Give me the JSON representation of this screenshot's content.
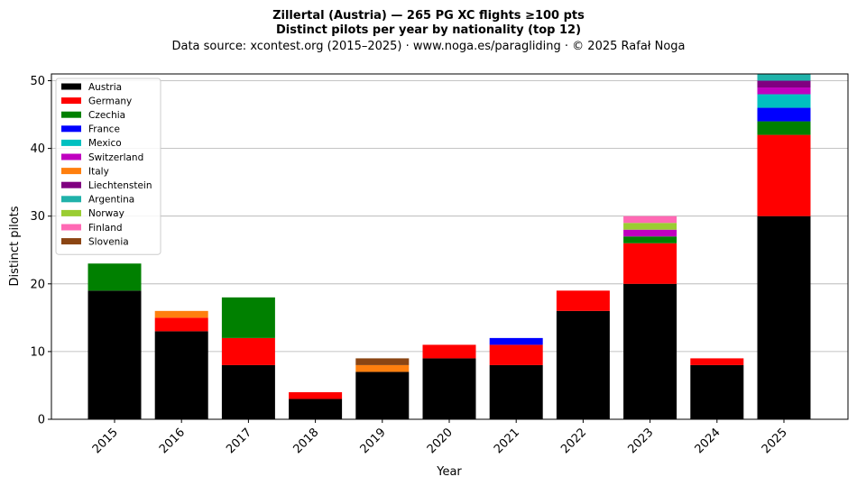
{
  "chart_data": {
    "type": "bar",
    "stacked": true,
    "title_line1": "Zillertal (Austria)  —  265 PG XC flights ≥100 pts",
    "title_line2": "Distinct pilots per year by nationality (top 12)",
    "subtitle": "Data source: xcontest.org (2015–2025)  ·  www.noga.es/paragliding  ·  © 2025 Rafał Noga",
    "xlabel": "Year",
    "ylabel": "Distinct pilots",
    "ylim": [
      0,
      51
    ],
    "yticks": [
      0,
      10,
      20,
      30,
      40,
      50
    ],
    "grid": "horizontal",
    "legend_position": "top-left",
    "categories": [
      "2015",
      "2016",
      "2017",
      "2018",
      "2019",
      "2020",
      "2021",
      "2022",
      "2023",
      "2024",
      "2025"
    ],
    "series": [
      {
        "name": "Austria",
        "color": "#000000",
        "values": [
          19,
          13,
          8,
          3,
          7,
          9,
          8,
          16,
          20,
          8,
          30
        ]
      },
      {
        "name": "Germany",
        "color": "#ff0000",
        "values": [
          0,
          2,
          4,
          1,
          0,
          2,
          3,
          3,
          6,
          1,
          12
        ]
      },
      {
        "name": "Czechia",
        "color": "#008000",
        "values": [
          4,
          0,
          6,
          0,
          0,
          0,
          0,
          0,
          1,
          0,
          2
        ]
      },
      {
        "name": "France",
        "color": "#0000ff",
        "values": [
          0,
          0,
          0,
          0,
          0,
          0,
          1,
          0,
          0,
          0,
          2
        ]
      },
      {
        "name": "Mexico",
        "color": "#00c0c0",
        "values": [
          0,
          0,
          0,
          0,
          0,
          0,
          0,
          0,
          0,
          0,
          2
        ]
      },
      {
        "name": "Switzerland",
        "color": "#c000c0",
        "values": [
          0,
          0,
          0,
          0,
          0,
          0,
          0,
          0,
          1,
          0,
          1
        ]
      },
      {
        "name": "Italy",
        "color": "#ff7f0e",
        "values": [
          0,
          1,
          0,
          0,
          1,
          0,
          0,
          0,
          0,
          0,
          0
        ]
      },
      {
        "name": "Liechtenstein",
        "color": "#800080",
        "values": [
          0,
          0,
          0,
          0,
          0,
          0,
          0,
          0,
          0,
          0,
          1
        ]
      },
      {
        "name": "Argentina",
        "color": "#20b2aa",
        "values": [
          0,
          0,
          0,
          0,
          0,
          0,
          0,
          0,
          0,
          0,
          1
        ]
      },
      {
        "name": "Norway",
        "color": "#9acd32",
        "values": [
          0,
          0,
          0,
          0,
          0,
          0,
          0,
          0,
          1,
          0,
          0
        ]
      },
      {
        "name": "Finland",
        "color": "#ff69b4",
        "values": [
          0,
          0,
          0,
          0,
          0,
          0,
          0,
          0,
          1,
          0,
          0
        ]
      },
      {
        "name": "Slovenia",
        "color": "#8b4513",
        "values": [
          0,
          0,
          0,
          0,
          1,
          0,
          0,
          0,
          0,
          0,
          0
        ]
      }
    ]
  }
}
